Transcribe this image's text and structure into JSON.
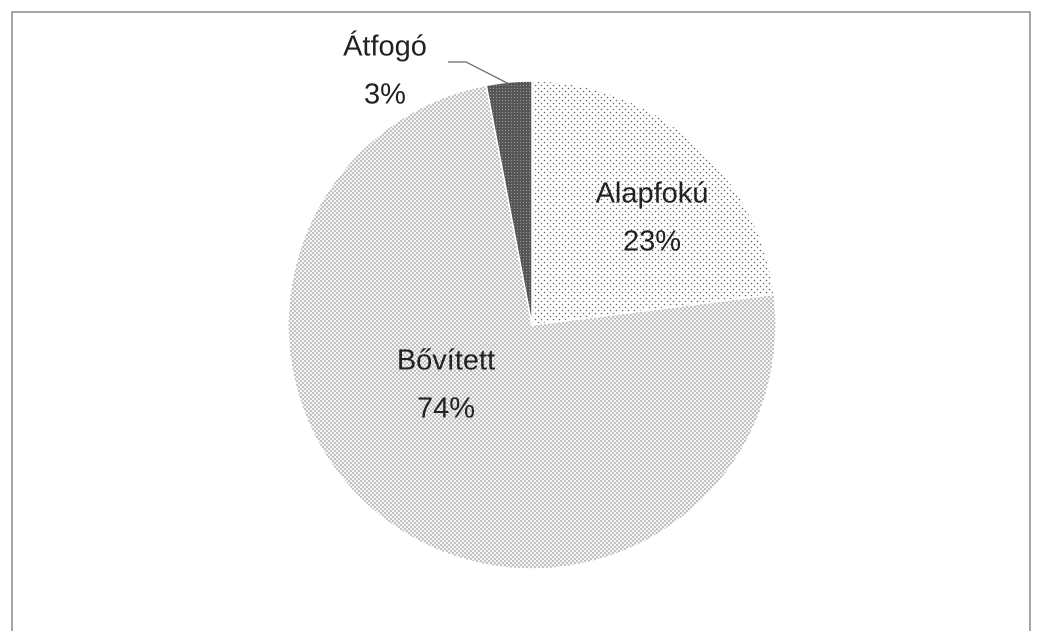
{
  "chart_data": {
    "type": "pie",
    "categories": [
      "Alapfokú",
      "Bővített",
      "Átfogó"
    ],
    "values": [
      23,
      74,
      3
    ],
    "value_labels": [
      "23%",
      "74%",
      "3%"
    ]
  }
}
